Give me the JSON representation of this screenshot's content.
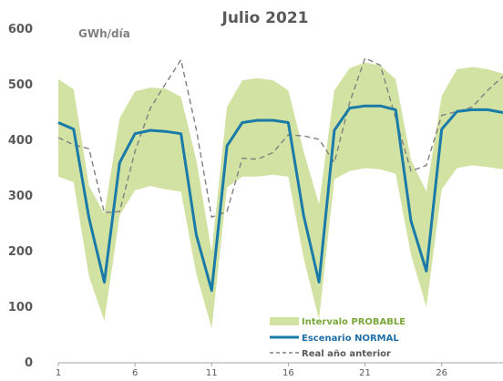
{
  "chart_data": {
    "type": "area",
    "title": "Julio 2021",
    "ylabel": "GWh/día",
    "xlabel": "",
    "ylim": [
      0,
      600
    ],
    "xlim": [
      1,
      30
    ],
    "yticks": [
      0,
      100,
      200,
      300,
      400,
      500,
      600
    ],
    "xticks": [
      1,
      6,
      11,
      16,
      21,
      26
    ],
    "grid": false,
    "legend_position": "bottom-right",
    "colors": {
      "band": "#d2e2a2",
      "normal": "#1a7aa8",
      "previous": "#808080",
      "interval_label": "#7aa73a",
      "normal_label": "#1f6fa8",
      "previous_label": "#595959"
    },
    "legend": {
      "interval": "Intervalo PROBABLE",
      "normal": "Escenario NORMAL",
      "previous": "Real año anterior"
    },
    "series": [
      {
        "name": "Intervalo PROBABLE",
        "x": [
          1,
          2,
          3,
          4,
          5,
          6,
          7,
          8,
          9,
          10,
          11,
          12,
          13,
          14,
          15,
          16,
          17,
          18,
          19,
          20,
          21,
          22,
          23,
          24,
          25,
          26,
          27,
          28,
          29,
          30
        ],
        "lower": [
          335,
          325,
          155,
          75,
          265,
          310,
          318,
          312,
          308,
          160,
          62,
          315,
          335,
          335,
          338,
          335,
          188,
          78,
          330,
          345,
          350,
          348,
          340,
          195,
          100,
          312,
          350,
          355,
          352,
          348
        ],
        "upper": [
          510,
          492,
          318,
          268,
          440,
          488,
          495,
          493,
          478,
          365,
          200,
          460,
          508,
          512,
          508,
          490,
          380,
          285,
          490,
          530,
          540,
          535,
          510,
          365,
          308,
          480,
          528,
          532,
          528,
          520
        ]
      },
      {
        "name": "Escenario NORMAL",
        "x": [
          1,
          2,
          3,
          4,
          5,
          6,
          7,
          8,
          9,
          10,
          11,
          12,
          13,
          14,
          15,
          16,
          17,
          18,
          19,
          20,
          21,
          22,
          23,
          24,
          25,
          26,
          27,
          28,
          29,
          30
        ],
        "values": [
          432,
          420,
          260,
          145,
          360,
          412,
          418,
          416,
          412,
          230,
          130,
          390,
          432,
          436,
          436,
          432,
          265,
          145,
          418,
          458,
          462,
          462,
          455,
          255,
          165,
          420,
          452,
          455,
          455,
          450
        ]
      },
      {
        "name": "Real año anterior",
        "x": [
          1,
          2,
          3,
          4,
          5,
          6,
          7,
          8,
          9,
          10,
          11,
          12,
          13,
          14,
          15,
          16,
          17,
          18,
          19,
          20,
          21,
          22,
          23,
          24,
          25,
          26,
          27,
          28,
          29,
          30
        ],
        "values": [
          405,
          392,
          385,
          270,
          272,
          380,
          458,
          502,
          545,
          420,
          262,
          272,
          368,
          366,
          378,
          410,
          408,
          402,
          360,
          468,
          548,
          535,
          440,
          345,
          355,
          445,
          452,
          460,
          490,
          515
        ]
      }
    ]
  }
}
